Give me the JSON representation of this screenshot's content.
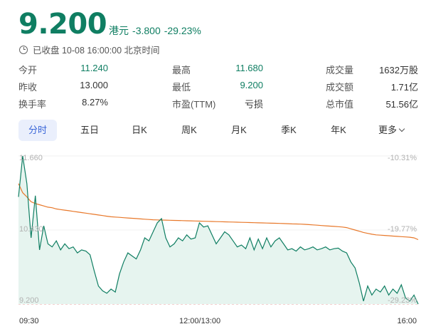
{
  "quote": {
    "price": "9.200",
    "currency": "港元",
    "change": "-3.800",
    "change_pct": "-29.23%",
    "status": "已收盘 10-08 16:00:00 北京时间",
    "up_color": "#0f7e62"
  },
  "stats": {
    "open_label": "今开",
    "open": "11.240",
    "high_label": "最高",
    "high": "11.680",
    "volume_label": "成交量",
    "volume": "1632万股",
    "prev_close_label": "昨收",
    "prev_close": "13.000",
    "low_label": "最低",
    "low": "9.200",
    "turnover_label": "成交额",
    "turnover": "1.71亿",
    "turnover_rate_label": "换手率",
    "turnover_rate": "8.27%",
    "pe_label": "市盈(TTM)",
    "pe": "亏损",
    "market_cap_label": "总市值",
    "market_cap": "51.56亿"
  },
  "tabs": [
    {
      "label": "分时",
      "active": true
    },
    {
      "label": "五日"
    },
    {
      "label": "日K"
    },
    {
      "label": "周K"
    },
    {
      "label": "月K"
    },
    {
      "label": "季K"
    },
    {
      "label": "年K"
    },
    {
      "label": "更多"
    }
  ],
  "chart_data": {
    "type": "line",
    "y_left_ticks": [
      "11.660",
      "10.430",
      "9.200"
    ],
    "y_right_ticks": [
      "-10.31%",
      "-19.77%",
      "-29.23%"
    ],
    "x_ticks": [
      "09:30",
      "12:00/13:00",
      "16:00"
    ],
    "ylim": [
      9.2,
      11.66
    ],
    "colors": {
      "price": "#0f7e62",
      "average": "#e8782a",
      "fill": "#e6f4ef"
    },
    "series": [
      {
        "values": [
          10.98,
          11.66,
          11.2,
          10.3,
          11.0,
          10.1,
          10.5,
          10.2,
          10.15,
          10.25,
          10.1,
          10.2,
          10.12,
          10.15,
          10.05,
          10.1,
          10.08,
          10.02,
          9.75,
          9.5,
          9.42,
          9.38,
          9.45,
          9.4,
          9.7,
          9.9,
          10.05,
          10.0,
          9.95,
          10.1,
          10.3,
          10.25,
          10.4,
          10.55,
          10.62,
          10.3,
          10.15,
          10.2,
          10.3,
          10.25,
          10.35,
          10.28,
          10.3,
          10.55,
          10.48,
          10.5,
          10.35,
          10.2,
          10.3,
          10.4,
          10.35,
          10.25,
          10.15,
          10.18,
          10.12,
          10.3,
          10.1,
          10.28,
          10.12,
          10.3,
          10.15,
          10.25,
          10.3,
          10.2,
          10.1,
          10.12,
          10.08,
          10.15,
          10.1,
          10.12,
          10.15,
          10.1,
          10.12,
          10.15,
          10.1,
          10.12,
          10.13,
          10.08,
          10.05,
          9.9,
          9.8,
          9.55,
          9.25,
          9.5,
          9.35,
          9.45,
          9.4,
          9.5,
          9.35,
          9.45,
          9.38,
          9.52,
          9.3,
          9.25,
          9.35,
          9.2
        ]
      },
      {
        "values": [
          11.2,
          11.05,
          10.98,
          10.9,
          10.87,
          10.85,
          10.83,
          10.81,
          10.8,
          10.78,
          10.77,
          10.76,
          10.75,
          10.74,
          10.73,
          10.72,
          10.71,
          10.7,
          10.69,
          10.68,
          10.67,
          10.66,
          10.65,
          10.645,
          10.64,
          10.635,
          10.63,
          10.625,
          10.62,
          10.615,
          10.61,
          10.605,
          10.6,
          10.598,
          10.596,
          10.594,
          10.592,
          10.59,
          10.588,
          10.586,
          10.584,
          10.582,
          10.58,
          10.578,
          10.576,
          10.574,
          10.572,
          10.57,
          10.568,
          10.566,
          10.564,
          10.562,
          10.56,
          10.558,
          10.556,
          10.554,
          10.552,
          10.55,
          10.548,
          10.546,
          10.544,
          10.542,
          10.54,
          10.538,
          10.535,
          10.532,
          10.53,
          10.528,
          10.525,
          10.52,
          10.515,
          10.51,
          10.505,
          10.5,
          10.495,
          10.49,
          10.485,
          10.48,
          10.47,
          10.45,
          10.43,
          10.41,
          10.39,
          10.375,
          10.36,
          10.35,
          10.345,
          10.34,
          10.335,
          10.33,
          10.325,
          10.32,
          10.315,
          10.31,
          10.3,
          10.27
        ]
      }
    ]
  }
}
